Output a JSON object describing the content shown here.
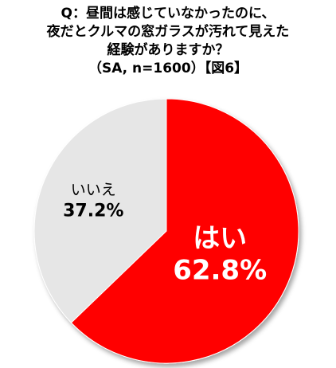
{
  "title": {
    "lines": [
      "Q：昼間は感じていなかったのに、",
      "夜だとクルマの窓ガラスが汚れて見えた",
      "経験がありますか？",
      "（SA, n=1600）【図6】"
    ]
  },
  "chart_data": {
    "type": "pie",
    "title": "Q：昼間は感じていなかったのに、夜だとクルマの窓ガラスが汚れて見えた経験がありますか？（SA, n=1600）【図6】",
    "slices": [
      {
        "label": "はい",
        "value": 62.8,
        "value_label": "62.8%",
        "color": "#ff0000",
        "text_color": "#ffffff"
      },
      {
        "label": "いいえ",
        "value": 37.2,
        "value_label": "37.2%",
        "color": "#e6e6e6",
        "text_color": "#000000"
      }
    ],
    "start_angle_deg": 0,
    "direction": "clockwise",
    "legend": "none"
  }
}
